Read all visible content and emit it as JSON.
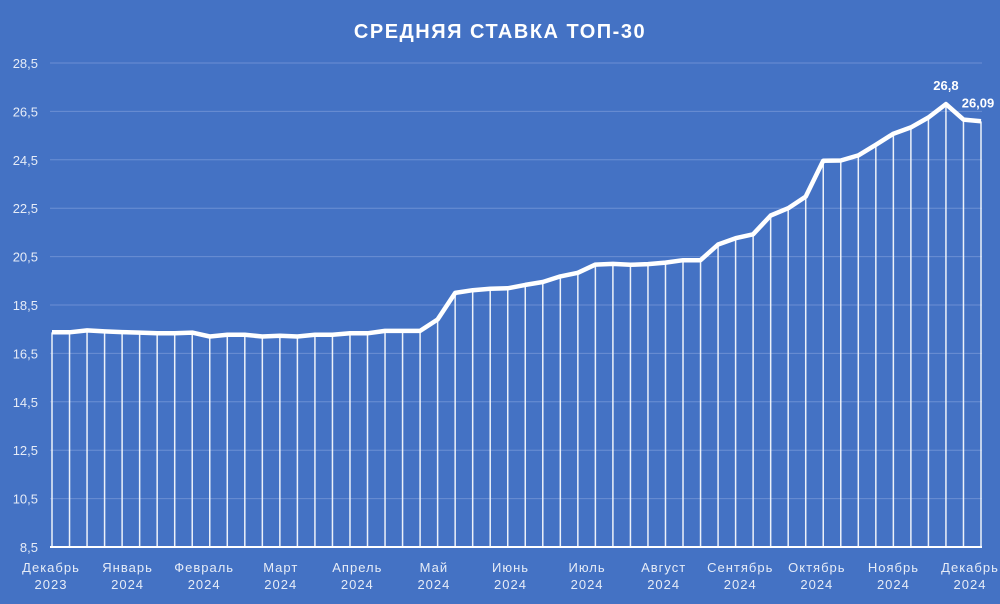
{
  "chart_data": {
    "type": "line",
    "title": "СРЕДНЯЯ СТАВКА ТОП-30",
    "xlabel": "",
    "ylabel": "",
    "ylim": [
      8.5,
      28.5
    ],
    "yticks": [
      "8,5",
      "10,5",
      "12,5",
      "14,5",
      "16,5",
      "18,5",
      "20,5",
      "22,5",
      "24,5",
      "26,5",
      "28,5"
    ],
    "grid": true,
    "x_labels": [
      [
        "Декабрь",
        "2023"
      ],
      [
        "Январь",
        "2024"
      ],
      [
        "Февраль",
        "2024"
      ],
      [
        "Март",
        "2024"
      ],
      [
        "Апрель",
        "2024"
      ],
      [
        "Май",
        "2024"
      ],
      [
        "Июнь",
        "2024"
      ],
      [
        "Июль",
        "2024"
      ],
      [
        "Август",
        "2024"
      ],
      [
        "Сентябрь",
        "2024"
      ],
      [
        "Октябрь",
        "2024"
      ],
      [
        "Ноябрь",
        "2024"
      ],
      [
        "Декабрь",
        "2024"
      ]
    ],
    "series": [
      {
        "name": "Средняя ставка ТОП-30",
        "values": [
          17.37,
          17.37,
          17.45,
          17.41,
          17.38,
          17.36,
          17.33,
          17.33,
          17.36,
          17.2,
          17.27,
          17.27,
          17.2,
          17.23,
          17.2,
          17.27,
          17.27,
          17.33,
          17.33,
          17.43,
          17.43,
          17.43,
          17.9,
          19.0,
          19.11,
          19.17,
          19.19,
          19.33,
          19.45,
          19.68,
          19.83,
          20.17,
          20.2,
          20.16,
          20.19,
          20.25,
          20.35,
          20.35,
          21.0,
          21.26,
          21.42,
          22.2,
          22.5,
          22.98,
          24.46,
          24.47,
          24.68,
          25.12,
          25.58,
          25.84,
          26.25,
          26.8,
          26.16,
          26.09
        ]
      }
    ],
    "data_labels": [
      {
        "index": 51,
        "text": "26,8"
      },
      {
        "index": 53,
        "text": "26,09"
      }
    ],
    "colors": {
      "background": "#4472c4",
      "line": "#ffffff",
      "grid": "#6b8fd3"
    }
  }
}
